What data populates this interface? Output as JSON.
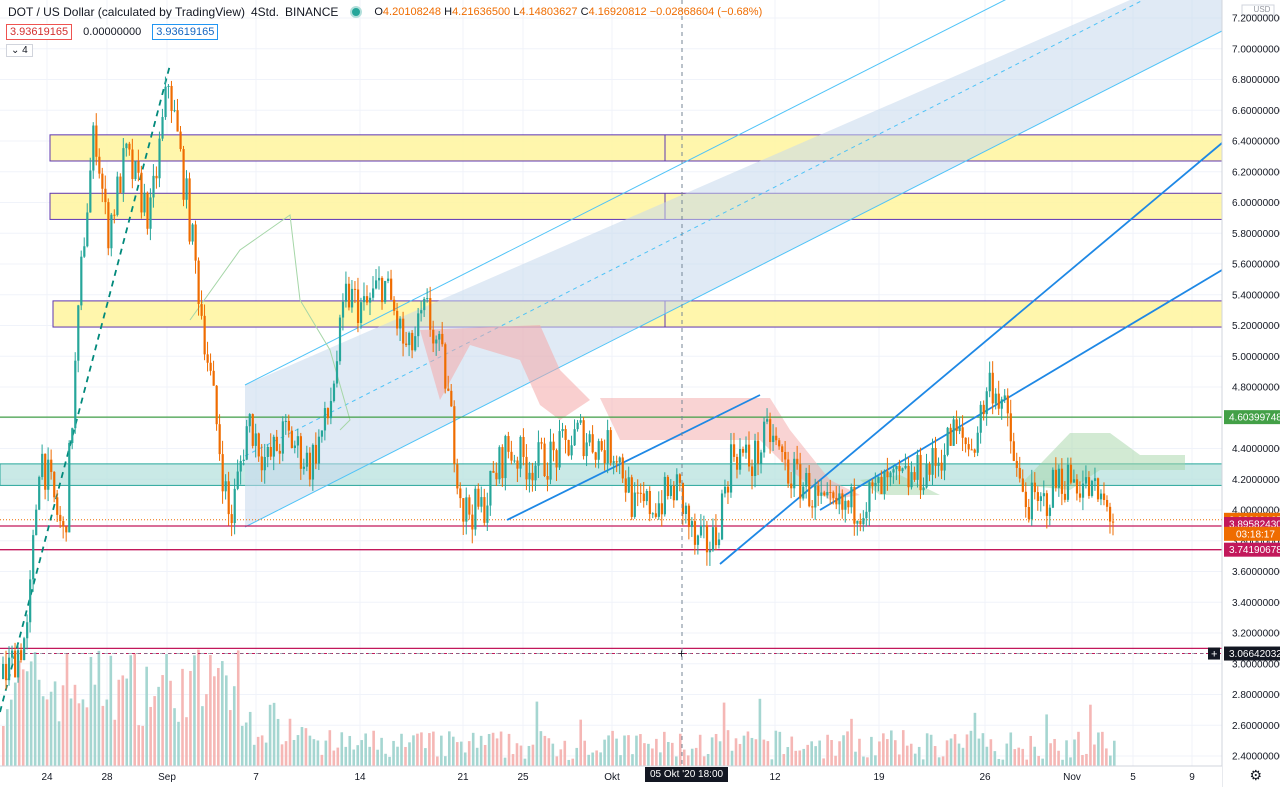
{
  "header": {
    "symbol": "DOT / US Dollar (calculated by TradingView)",
    "interval": "4Std.",
    "exchange": "BINANCE",
    "open_label": "O",
    "open": "4.20108248",
    "high_label": "H",
    "high": "4.21636500",
    "low_label": "L",
    "low": "4.14803627",
    "close_label": "C",
    "close": "4.16920812",
    "change": "−0.02868604 (−0.68%)"
  },
  "chips": {
    "bid": "3.93619165",
    "spread": "0.00000000",
    "ask": "3.93619165"
  },
  "indicator_toggle": "⌄ 4",
  "currency": "USD",
  "crosshair_time": "05 Okt '20   18:00",
  "colors": {
    "up": "#26a69a",
    "down": "#ef5350",
    "candle_up": "#26a69a",
    "candle_down": "#ef6c00",
    "zone_yellow": "#fff59d",
    "channel_fill": "#c6d9ec",
    "trend_blue": "#1e88e5",
    "teal_zone": "#80cbc4",
    "green_line": "#43a047",
    "pink_line": "#c2185b"
  },
  "chart_data": {
    "type": "candlestick",
    "price_axis": {
      "min": 2.3,
      "max": 7.3,
      "ticks": [
        "7.20000000",
        "7.00000000",
        "6.80000000",
        "6.60000000",
        "6.40000000",
        "6.20000000",
        "6.00000000",
        "5.80000000",
        "5.60000000",
        "5.40000000",
        "5.20000000",
        "5.00000000",
        "4.80000000",
        "4.60000000",
        "4.40000000",
        "4.20000000",
        "4.00000000",
        "3.80000000",
        "3.60000000",
        "3.40000000",
        "3.20000000",
        "3.00000000",
        "2.80000000",
        "2.60000000",
        "2.40000000"
      ]
    },
    "time_axis": {
      "ticks": [
        "24",
        "28",
        "Sep",
        "7",
        "14",
        "21",
        "25",
        "Okt",
        "12",
        "19",
        "26",
        "Nov",
        "5",
        "9"
      ]
    },
    "price_labels": [
      {
        "value": 4.60399748,
        "text": "4.60399748",
        "color": "#43a047"
      },
      {
        "value": 3.93619165,
        "text": "3.93619165",
        "color": "#ef6c00"
      },
      {
        "value": 3.8958243,
        "text": "3.89582430",
        "color": "#c2185b"
      },
      {
        "value": 3.74190678,
        "text": "3.74190678",
        "color": "#c2185b"
      },
      {
        "value": 3.06642032,
        "text": "3.06642032",
        "color": "#131722"
      }
    ],
    "countdown": "03:18:17",
    "horizontal_zones": [
      {
        "low": 6.27,
        "high": 6.44
      },
      {
        "low": 5.89,
        "high": 6.06
      },
      {
        "low": 5.19,
        "high": 5.36
      },
      {
        "low": 4.16,
        "high": 4.3
      }
    ],
    "horizontal_lines": [
      {
        "value": 4.60399748,
        "color": "#43a047"
      },
      {
        "value": 3.8958243,
        "color": "#c2185b"
      },
      {
        "value": 3.74190678,
        "color": "#c2185b"
      },
      {
        "value": 3.1,
        "color": "#c2185b"
      }
    ],
    "close_path": [
      [
        0,
        2.9
      ],
      [
        0.02,
        3.2
      ],
      [
        0.03,
        4.4
      ],
      [
        0.05,
        3.8
      ],
      [
        0.065,
        5.7
      ],
      [
        0.075,
        6.5
      ],
      [
        0.085,
        5.8
      ],
      [
        0.1,
        6.3
      ],
      [
        0.12,
        5.9
      ],
      [
        0.135,
        6.8
      ],
      [
        0.15,
        6.0
      ],
      [
        0.165,
        5.1
      ],
      [
        0.185,
        3.9
      ],
      [
        0.2,
        4.6
      ],
      [
        0.215,
        4.3
      ],
      [
        0.23,
        4.5
      ],
      [
        0.25,
        4.3
      ],
      [
        0.265,
        4.6
      ],
      [
        0.28,
        5.4
      ],
      [
        0.295,
        5.3
      ],
      [
        0.31,
        5.5
      ],
      [
        0.33,
        5.0
      ],
      [
        0.345,
        5.3
      ],
      [
        0.36,
        4.9
      ],
      [
        0.375,
        4.0
      ],
      [
        0.39,
        4.0
      ],
      [
        0.41,
        4.4
      ],
      [
        0.43,
        4.3
      ],
      [
        0.45,
        4.35
      ],
      [
        0.47,
        4.5
      ],
      [
        0.49,
        4.4
      ],
      [
        0.5,
        4.4
      ],
      [
        0.515,
        4.0
      ],
      [
        0.535,
        4.05
      ],
      [
        0.55,
        4.15
      ],
      [
        0.565,
        3.75
      ],
      [
        0.58,
        3.8
      ],
      [
        0.595,
        4.4
      ],
      [
        0.61,
        4.3
      ],
      [
        0.625,
        4.5
      ],
      [
        0.64,
        4.25
      ],
      [
        0.655,
        4.15
      ],
      [
        0.67,
        3.98
      ],
      [
        0.685,
        4.0
      ],
      [
        0.7,
        4.05
      ],
      [
        0.72,
        4.15
      ],
      [
        0.74,
        4.2
      ],
      [
        0.76,
        4.3
      ],
      [
        0.775,
        4.5
      ],
      [
        0.79,
        4.4
      ],
      [
        0.805,
        4.85
      ],
      [
        0.815,
        4.7
      ],
      [
        0.83,
        4.1
      ],
      [
        0.845,
        4.0
      ],
      [
        0.86,
        4.2
      ],
      [
        0.875,
        4.2
      ],
      [
        0.89,
        4.1
      ],
      [
        0.905,
        3.96
      ]
    ]
  }
}
